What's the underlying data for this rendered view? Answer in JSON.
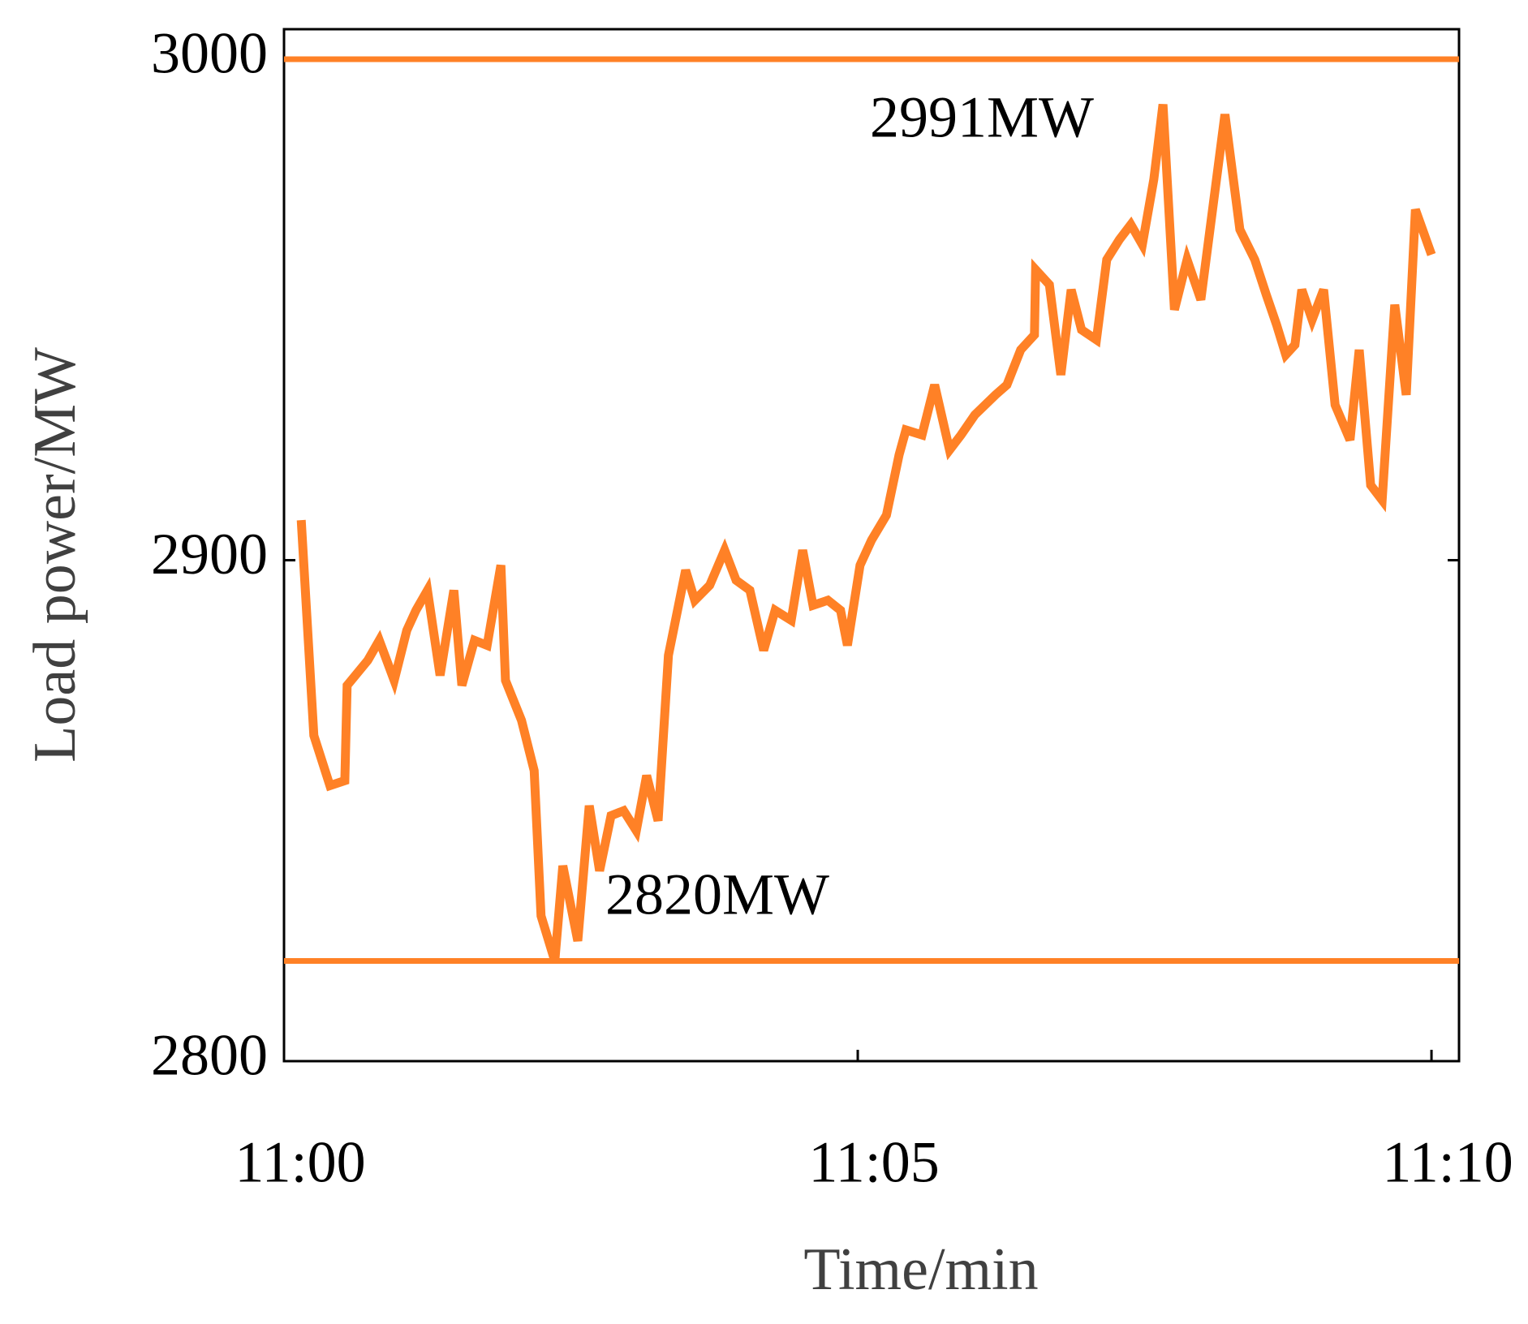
{
  "chart_data": {
    "type": "line",
    "x_label": "Time/min",
    "y_label": "Load power/MW",
    "x": [
      0.15,
      0.26,
      0.4,
      0.53,
      0.55,
      0.73,
      0.83,
      0.96,
      1.07,
      1.15,
      1.25,
      1.36,
      1.48,
      1.55,
      1.66,
      1.77,
      1.89,
      1.93,
      2.07,
      2.18,
      2.24,
      2.36,
      2.43,
      2.56,
      2.66,
      2.75,
      2.85,
      2.96,
      3.07,
      3.16,
      3.26,
      3.35,
      3.5,
      3.58,
      3.71,
      3.84,
      3.94,
      4.06,
      4.18,
      4.28,
      4.42,
      4.52,
      4.61,
      4.74,
      4.85,
      4.91,
      5.02,
      5.12,
      5.25,
      5.36,
      5.42,
      5.56,
      5.67,
      5.8,
      5.9,
      6.02,
      6.2,
      6.3,
      6.42,
      6.54,
      6.55,
      6.67,
      6.77,
      6.86,
      6.95,
      7.08,
      7.17,
      7.28,
      7.38,
      7.48,
      7.58,
      7.66,
      7.76,
      7.87,
      7.99,
      8.2,
      8.33,
      8.46,
      8.56,
      8.65,
      8.73,
      8.81,
      8.87,
      8.96,
      9.06,
      9.16,
      9.29,
      9.37,
      9.47,
      9.57,
      9.68,
      9.78,
      9.86,
      10.0
    ],
    "series": [
      {
        "name": "Load power",
        "color": "#ff8126",
        "values": [
          2908,
          2865,
          2855,
          2856,
          2875,
          2880,
          2884,
          2876,
          2886,
          2890,
          2894,
          2877,
          2894,
          2875,
          2884,
          2883,
          2899,
          2876,
          2868,
          2858,
          2829,
          2820,
          2839,
          2824,
          2851,
          2838,
          2849,
          2850,
          2846,
          2857,
          2848,
          2881,
          2898,
          2892,
          2895,
          2902,
          2896,
          2894,
          2882,
          2890,
          2888,
          2902,
          2891,
          2892,
          2890,
          2883,
          2899,
          2904,
          2909,
          2921,
          2926,
          2925,
          2935,
          2922,
          2925,
          2929,
          2933,
          2935,
          2942,
          2945,
          2958,
          2955,
          2937,
          2954,
          2946,
          2944,
          2960,
          2964,
          2967,
          2963,
          2976,
          2991,
          2950,
          2960,
          2952,
          2989,
          2966,
          2960,
          2953,
          2947,
          2941,
          2943,
          2954,
          2948,
          2954,
          2931,
          2924,
          2942,
          2915,
          2912,
          2951,
          2933,
          2970,
          2961
        ]
      }
    ],
    "reference_lines": [
      3000,
      2820
    ],
    "annotations": [
      "2991MW",
      "2820MW"
    ],
    "xlim": [
      0,
      10.24
    ],
    "xticks": [
      {
        "value": 0,
        "label": "11:00"
      },
      {
        "value": 5,
        "label": "11:05"
      },
      {
        "value": 10,
        "label": "11:10"
      }
    ],
    "ylim": [
      2800,
      3006
    ],
    "yticks": [
      2800,
      2900,
      3000
    ]
  }
}
